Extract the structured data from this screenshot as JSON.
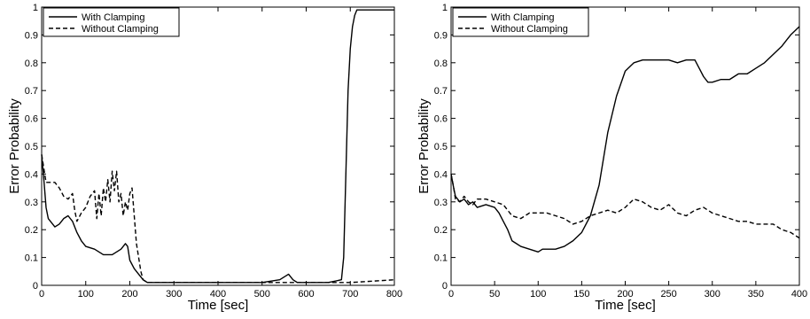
{
  "chart_data": [
    {
      "type": "line",
      "xlabel": "Time [sec]",
      "ylabel": "Error Probability",
      "xlim": [
        0,
        800
      ],
      "ylim": [
        0,
        1
      ],
      "xticks": [
        0,
        100,
        200,
        300,
        400,
        500,
        600,
        700,
        800
      ],
      "yticks": [
        0,
        0.1,
        0.2,
        0.3,
        0.4,
        0.5,
        0.6,
        0.7,
        0.8,
        0.9,
        1
      ],
      "legend": "top-left",
      "series": [
        {
          "name": "With Clamping",
          "style": "solid",
          "x": [
            0,
            5,
            10,
            15,
            20,
            30,
            40,
            50,
            60,
            70,
            80,
            90,
            100,
            120,
            140,
            160,
            170,
            180,
            190,
            195,
            200,
            210,
            220,
            230,
            240,
            300,
            350,
            400,
            450,
            500,
            540,
            550,
            560,
            570,
            580,
            600,
            650,
            680,
            685,
            690,
            695,
            700,
            705,
            710,
            715,
            720,
            800
          ],
          "y": [
            0.47,
            0.38,
            0.28,
            0.24,
            0.23,
            0.21,
            0.22,
            0.24,
            0.25,
            0.23,
            0.19,
            0.16,
            0.14,
            0.13,
            0.11,
            0.11,
            0.12,
            0.13,
            0.15,
            0.14,
            0.09,
            0.06,
            0.04,
            0.02,
            0.01,
            0.01,
            0.01,
            0.01,
            0.01,
            0.01,
            0.02,
            0.03,
            0.04,
            0.02,
            0.01,
            0.01,
            0.01,
            0.02,
            0.1,
            0.4,
            0.7,
            0.85,
            0.93,
            0.97,
            0.99,
            0.99,
            0.99
          ]
        },
        {
          "name": "Without Clamping",
          "style": "dashed",
          "x": [
            0,
            5,
            10,
            20,
            30,
            40,
            50,
            60,
            70,
            75,
            80,
            90,
            100,
            110,
            120,
            125,
            130,
            135,
            140,
            145,
            150,
            155,
            160,
            165,
            170,
            175,
            180,
            185,
            190,
            195,
            200,
            205,
            210,
            215,
            220,
            225,
            230,
            240,
            300,
            400,
            500,
            600,
            700,
            800
          ],
          "y": [
            0.47,
            0.42,
            0.37,
            0.37,
            0.37,
            0.35,
            0.32,
            0.31,
            0.33,
            0.27,
            0.23,
            0.26,
            0.28,
            0.32,
            0.34,
            0.24,
            0.33,
            0.25,
            0.35,
            0.3,
            0.38,
            0.3,
            0.41,
            0.34,
            0.41,
            0.3,
            0.33,
            0.25,
            0.3,
            0.27,
            0.33,
            0.35,
            0.25,
            0.15,
            0.1,
            0.05,
            0.02,
            0.01,
            0.01,
            0.01,
            0.01,
            0.01,
            0.01,
            0.02
          ]
        }
      ]
    },
    {
      "type": "line",
      "xlabel": "Time [sec]",
      "ylabel": "Error Probability",
      "xlim": [
        0,
        400
      ],
      "ylim": [
        0,
        1
      ],
      "xticks": [
        0,
        50,
        100,
        150,
        200,
        250,
        300,
        350,
        400
      ],
      "yticks": [
        0,
        0.1,
        0.2,
        0.3,
        0.4,
        0.5,
        0.6,
        0.7,
        0.8,
        0.9,
        1
      ],
      "legend": "top-left",
      "series": [
        {
          "name": "With Clamping",
          "style": "solid",
          "x": [
            0,
            3,
            5,
            10,
            15,
            20,
            25,
            30,
            40,
            50,
            55,
            60,
            65,
            70,
            75,
            80,
            90,
            100,
            105,
            110,
            120,
            130,
            140,
            150,
            160,
            170,
            180,
            190,
            200,
            210,
            220,
            230,
            240,
            250,
            260,
            270,
            280,
            285,
            290,
            295,
            300,
            310,
            320,
            330,
            340,
            350,
            360,
            370,
            380,
            390,
            400
          ],
          "y": [
            0.4,
            0.35,
            0.32,
            0.3,
            0.31,
            0.29,
            0.3,
            0.28,
            0.29,
            0.28,
            0.26,
            0.23,
            0.2,
            0.16,
            0.15,
            0.14,
            0.13,
            0.12,
            0.13,
            0.13,
            0.13,
            0.14,
            0.16,
            0.19,
            0.25,
            0.36,
            0.55,
            0.68,
            0.77,
            0.8,
            0.81,
            0.81,
            0.81,
            0.81,
            0.8,
            0.81,
            0.81,
            0.78,
            0.75,
            0.73,
            0.73,
            0.74,
            0.74,
            0.76,
            0.76,
            0.78,
            0.8,
            0.83,
            0.86,
            0.9,
            0.93
          ]
        },
        {
          "name": "Without Clamping",
          "style": "dashed",
          "x": [
            0,
            3,
            5,
            10,
            15,
            20,
            25,
            30,
            40,
            50,
            60,
            70,
            80,
            90,
            100,
            110,
            120,
            130,
            140,
            150,
            160,
            170,
            180,
            190,
            200,
            210,
            220,
            230,
            240,
            250,
            260,
            270,
            280,
            290,
            300,
            310,
            320,
            330,
            340,
            350,
            360,
            370,
            380,
            390,
            400
          ],
          "y": [
            0.4,
            0.35,
            0.31,
            0.3,
            0.32,
            0.3,
            0.29,
            0.31,
            0.31,
            0.3,
            0.29,
            0.25,
            0.24,
            0.26,
            0.26,
            0.26,
            0.25,
            0.24,
            0.22,
            0.23,
            0.25,
            0.26,
            0.27,
            0.26,
            0.28,
            0.31,
            0.3,
            0.28,
            0.27,
            0.29,
            0.26,
            0.25,
            0.27,
            0.28,
            0.26,
            0.25,
            0.24,
            0.23,
            0.23,
            0.22,
            0.22,
            0.22,
            0.2,
            0.19,
            0.17
          ]
        }
      ]
    }
  ]
}
